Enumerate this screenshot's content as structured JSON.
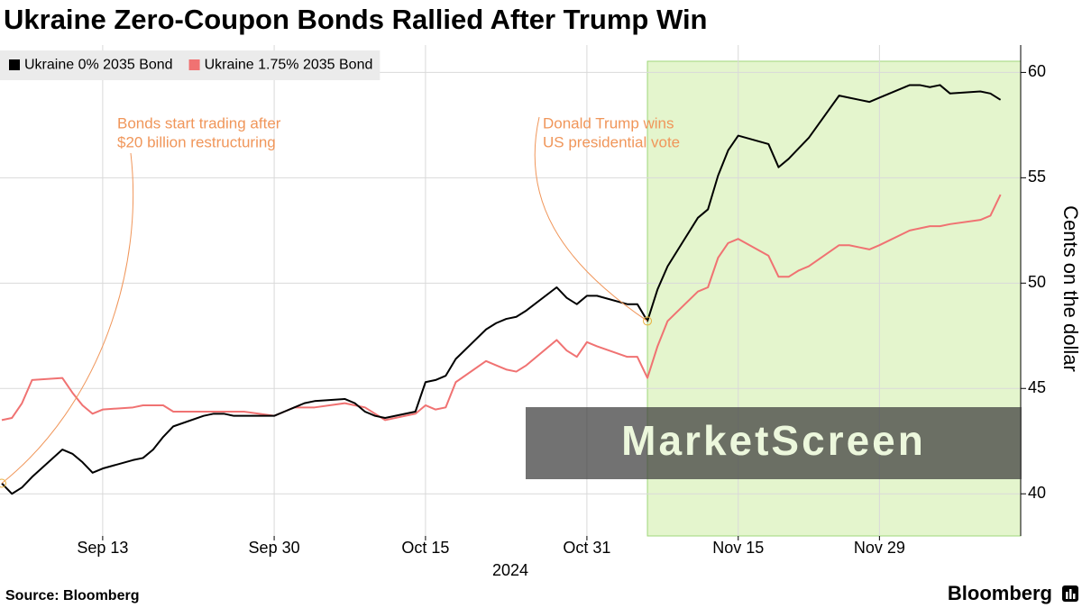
{
  "chart_data": {
    "type": "line",
    "title": "Ukraine Zero-Coupon Bonds Rallied After Trump Win",
    "y_label": "Cents on the dollar",
    "x_label": "2024",
    "source": "Source: Bloomberg",
    "brand": "Bloomberg",
    "watermark": "MarketScreen",
    "x": [
      "2024-09-03",
      "2024-09-04",
      "2024-09-05",
      "2024-09-06",
      "2024-09-09",
      "2024-09-10",
      "2024-09-11",
      "2024-09-12",
      "2024-09-13",
      "2024-09-16",
      "2024-09-17",
      "2024-09-18",
      "2024-09-19",
      "2024-09-20",
      "2024-09-23",
      "2024-09-24",
      "2024-09-25",
      "2024-09-26",
      "2024-09-27",
      "2024-09-30",
      "2024-10-01",
      "2024-10-02",
      "2024-10-03",
      "2024-10-04",
      "2024-10-07",
      "2024-10-08",
      "2024-10-09",
      "2024-10-10",
      "2024-10-11",
      "2024-10-14",
      "2024-10-15",
      "2024-10-16",
      "2024-10-17",
      "2024-10-18",
      "2024-10-21",
      "2024-10-22",
      "2024-10-23",
      "2024-10-24",
      "2024-10-25",
      "2024-10-28",
      "2024-10-29",
      "2024-10-30",
      "2024-10-31",
      "2024-11-01",
      "2024-11-04",
      "2024-11-05",
      "2024-11-06",
      "2024-11-07",
      "2024-11-08",
      "2024-11-11",
      "2024-11-12",
      "2024-11-13",
      "2024-11-14",
      "2024-11-15",
      "2024-11-18",
      "2024-11-19",
      "2024-11-20",
      "2024-11-21",
      "2024-11-22",
      "2024-11-25",
      "2024-11-26",
      "2024-11-27",
      "2024-11-28",
      "2024-11-29",
      "2024-12-02",
      "2024-12-03",
      "2024-12-04",
      "2024-12-05",
      "2024-12-06",
      "2024-12-09",
      "2024-12-10",
      "2024-12-11"
    ],
    "series": [
      {
        "name": "Ukraine 0% 2035 Bond",
        "color": "#000000",
        "values": [
          40.5,
          40.0,
          40.3,
          40.8,
          42.1,
          41.9,
          41.5,
          41.0,
          41.2,
          41.6,
          41.7,
          42.1,
          42.7,
          43.2,
          43.7,
          43.8,
          43.8,
          43.7,
          43.7,
          43.7,
          43.9,
          44.1,
          44.3,
          44.4,
          44.5,
          44.3,
          43.9,
          43.7,
          43.6,
          43.9,
          45.3,
          45.4,
          45.6,
          46.4,
          47.8,
          48.1,
          48.3,
          48.4,
          48.7,
          49.8,
          49.3,
          49.0,
          49.4,
          49.4,
          49.0,
          49.0,
          48.2,
          49.7,
          50.8,
          53.1,
          53.5,
          55.1,
          56.3,
          57.0,
          56.6,
          55.5,
          55.9,
          56.4,
          56.9,
          58.9,
          58.8,
          58.7,
          58.6,
          58.8,
          59.4,
          59.4,
          59.3,
          59.4,
          59.0,
          59.1,
          59.0,
          58.7
        ]
      },
      {
        "name": "Ukraine 1.75% 2035 Bond",
        "color": "#f07272",
        "values": [
          43.5,
          43.6,
          44.3,
          45.4,
          45.5,
          44.8,
          44.2,
          43.8,
          44.0,
          44.1,
          44.2,
          44.2,
          44.2,
          43.9,
          43.9,
          43.9,
          43.9,
          43.9,
          43.9,
          43.7,
          43.9,
          44.1,
          44.1,
          44.1,
          44.3,
          44.2,
          44.1,
          43.8,
          43.5,
          43.8,
          44.2,
          44.0,
          44.1,
          45.3,
          46.3,
          46.1,
          45.9,
          45.8,
          46.1,
          47.3,
          46.8,
          46.5,
          47.2,
          47.0,
          46.5,
          46.5,
          45.5,
          47.0,
          48.2,
          49.6,
          49.8,
          51.2,
          51.9,
          52.1,
          51.3,
          50.3,
          50.3,
          50.6,
          50.8,
          51.8,
          51.8,
          51.7,
          51.6,
          51.8,
          52.5,
          52.6,
          52.7,
          52.7,
          52.8,
          53.0,
          53.2,
          54.2
        ]
      }
    ],
    "xlim": [
      "2024-09-03",
      "2024-12-13"
    ],
    "xticks": [
      {
        "value": "2024-09-13",
        "label": "Sep 13"
      },
      {
        "value": "2024-09-30",
        "label": "Sep 30"
      },
      {
        "value": "2024-10-15",
        "label": "Oct 15"
      },
      {
        "value": "2024-10-31",
        "label": "Oct 31"
      },
      {
        "value": "2024-11-15",
        "label": "Nov 15"
      },
      {
        "value": "2024-11-29",
        "label": "Nov 29"
      }
    ],
    "ylim": [
      38,
      61.3
    ],
    "yticks": [
      40,
      45,
      50,
      55,
      60
    ],
    "grid": true,
    "legend": "top-left",
    "annotations": [
      {
        "text": [
          "Bonds start trading after",
          "$20 billion restructuring"
        ],
        "color": "#f0965a"
      },
      {
        "text": [
          "Donald Trump wins",
          "US presidential vote"
        ],
        "color": "#f0965a"
      }
    ],
    "highlight_color": "#e4f5cd"
  }
}
